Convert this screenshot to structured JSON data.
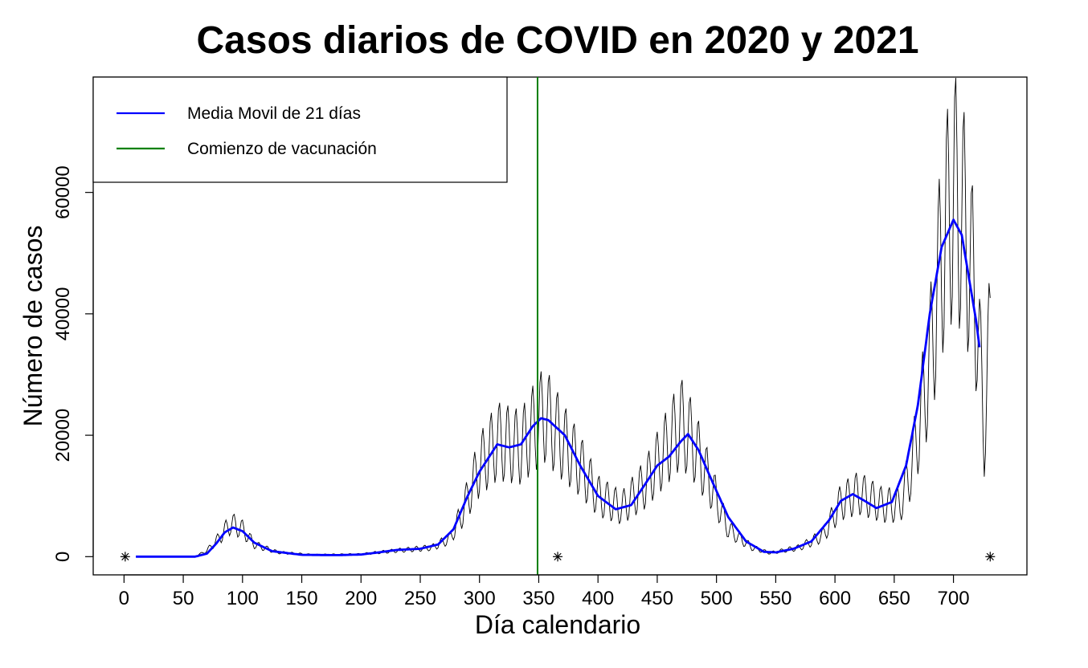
{
  "chart_data": {
    "type": "line",
    "title": "Casos diarios de COVID en 2020 y 2021",
    "xlabel": "Día calendario",
    "ylabel": "Número de casos",
    "xlim": [
      -26,
      762
    ],
    "ylim": [
      -3000,
      79000
    ],
    "x_ticks": [
      0,
      50,
      100,
      150,
      200,
      250,
      300,
      350,
      400,
      450,
      500,
      550,
      600,
      650,
      700
    ],
    "x_tick_labels": [
      "0",
      "50",
      "100",
      "150",
      "200",
      "250",
      "300",
      "350",
      "400",
      "450",
      "500",
      "550",
      "600",
      "650",
      "700"
    ],
    "y_ticks": [
      0,
      20000,
      40000,
      60000
    ],
    "y_tick_labels": [
      "0",
      "20000",
      "40000",
      "60000"
    ],
    "grid": false,
    "legend": {
      "position": "top-left",
      "entries": [
        {
          "label": "Media Movil de 21 días",
          "color": "#0000ff"
        },
        {
          "label": "Comienzo de vacunación",
          "color": "#008000"
        }
      ]
    },
    "colors": {
      "daily": "#000000",
      "moving_average": "#0000ff",
      "vaccination": "#008000"
    },
    "vaccination_start_day": 349,
    "markers": [
      {
        "x": 1,
        "y": 0,
        "symbol": "*"
      },
      {
        "x": 366,
        "y": 0,
        "symbol": "*"
      },
      {
        "x": 731,
        "y": 0,
        "symbol": "*"
      }
    ],
    "daily_cases": {
      "x_start": 10,
      "x_end": 731,
      "weekly_cycle_amplitude": 0.35,
      "envelope_points": [
        [
          10,
          0
        ],
        [
          60,
          0
        ],
        [
          70,
          1000
        ],
        [
          80,
          3000
        ],
        [
          90,
          5500
        ],
        [
          100,
          4500
        ],
        [
          110,
          2000
        ],
        [
          130,
          700
        ],
        [
          160,
          300
        ],
        [
          200,
          400
        ],
        [
          230,
          1000
        ],
        [
          260,
          1500
        ],
        [
          275,
          3000
        ],
        [
          285,
          7000
        ],
        [
          300,
          15000
        ],
        [
          315,
          19000
        ],
        [
          335,
          18000
        ],
        [
          345,
          21000
        ],
        [
          355,
          23500
        ],
        [
          370,
          19000
        ],
        [
          385,
          15000
        ],
        [
          400,
          10000
        ],
        [
          420,
          8000
        ],
        [
          440,
          12000
        ],
        [
          455,
          17000
        ],
        [
          470,
          22000
        ],
        [
          480,
          19000
        ],
        [
          495,
          12000
        ],
        [
          510,
          4500
        ],
        [
          530,
          1500
        ],
        [
          545,
          600
        ],
        [
          570,
          1500
        ],
        [
          590,
          3500
        ],
        [
          605,
          9000
        ],
        [
          620,
          10500
        ],
        [
          640,
          8500
        ],
        [
          655,
          8500
        ],
        [
          665,
          15000
        ],
        [
          680,
          32000
        ],
        [
          690,
          50000
        ],
        [
          700,
          60000
        ],
        [
          710,
          54000
        ],
        [
          720,
          40000
        ],
        [
          726,
          20000
        ],
        [
          731,
          37000
        ]
      ]
    },
    "moving_average": {
      "points": [
        [
          10,
          0
        ],
        [
          60,
          0
        ],
        [
          70,
          500
        ],
        [
          78,
          2200
        ],
        [
          85,
          4000
        ],
        [
          92,
          4800
        ],
        [
          100,
          4200
        ],
        [
          110,
          2300
        ],
        [
          125,
          900
        ],
        [
          150,
          300
        ],
        [
          180,
          250
        ],
        [
          200,
          350
        ],
        [
          215,
          700
        ],
        [
          230,
          1100
        ],
        [
          250,
          1300
        ],
        [
          265,
          2000
        ],
        [
          278,
          4500
        ],
        [
          290,
          10000
        ],
        [
          300,
          14000
        ],
        [
          315,
          18500
        ],
        [
          325,
          18000
        ],
        [
          335,
          18500
        ],
        [
          345,
          21500
        ],
        [
          352,
          22800
        ],
        [
          358,
          22500
        ],
        [
          372,
          20000
        ],
        [
          385,
          15000
        ],
        [
          400,
          10000
        ],
        [
          415,
          7800
        ],
        [
          428,
          8500
        ],
        [
          440,
          12000
        ],
        [
          450,
          15000
        ],
        [
          460,
          16500
        ],
        [
          470,
          19000
        ],
        [
          476,
          20200
        ],
        [
          485,
          17500
        ],
        [
          495,
          13000
        ],
        [
          510,
          6500
        ],
        [
          525,
          2500
        ],
        [
          540,
          800
        ],
        [
          550,
          700
        ],
        [
          565,
          1300
        ],
        [
          580,
          2500
        ],
        [
          595,
          6000
        ],
        [
          605,
          9200
        ],
        [
          615,
          10300
        ],
        [
          625,
          9200
        ],
        [
          635,
          8000
        ],
        [
          648,
          9000
        ],
        [
          660,
          15000
        ],
        [
          670,
          25000
        ],
        [
          680,
          40000
        ],
        [
          690,
          51000
        ],
        [
          700,
          55500
        ],
        [
          707,
          53000
        ],
        [
          713,
          46000
        ],
        [
          719,
          39000
        ],
        [
          722,
          34500
        ]
      ]
    }
  }
}
